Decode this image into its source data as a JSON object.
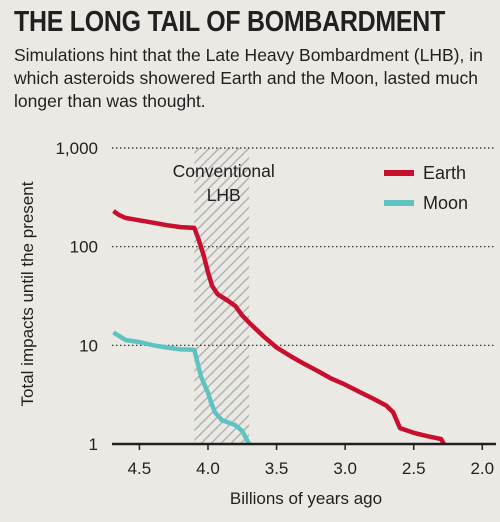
{
  "header": {
    "title": "THE LONG TAIL OF BOMBARDMENT",
    "subtitle": "Simulations hint that the Late Heavy Bombardment (LHB), in which asteroids showered Earth and the Moon, lasted much longer than was thought."
  },
  "chart_data": {
    "type": "line",
    "title": "THE LONG TAIL OF BOMBARDMENT",
    "xlabel": "Billions of years ago",
    "ylabel": "Total impacts until the present",
    "x_reversed": true,
    "xlim": [
      4.7,
      1.9
    ],
    "ylim": [
      1,
      1000
    ],
    "y_scale": "log",
    "x_ticks": [
      4.5,
      4.0,
      3.5,
      3.0,
      2.5,
      2.0
    ],
    "x_tick_labels": [
      "4.5",
      "4.0",
      "3.5",
      "3.0",
      "2.5",
      "2.0"
    ],
    "y_ticks": [
      1,
      10,
      100,
      1000
    ],
    "y_tick_labels": [
      "1",
      "10",
      "100",
      "1,000"
    ],
    "grid": "horizontal dotted",
    "legend_position": "top-right",
    "band": {
      "label": "Conventional LHB",
      "label_lines": [
        "Conventional",
        "LHB"
      ],
      "x_start": 4.1,
      "x_end": 3.7
    },
    "series": [
      {
        "name": "Earth",
        "color": "#c8102e",
        "points": [
          [
            4.69,
            230
          ],
          [
            4.65,
            210
          ],
          [
            4.6,
            195
          ],
          [
            4.5,
            185
          ],
          [
            4.4,
            175
          ],
          [
            4.3,
            165
          ],
          [
            4.2,
            158
          ],
          [
            4.1,
            155
          ],
          [
            4.07,
            120
          ],
          [
            4.03,
            80
          ],
          [
            4.0,
            55
          ],
          [
            3.97,
            40
          ],
          [
            3.93,
            33
          ],
          [
            3.85,
            28
          ],
          [
            3.8,
            25
          ],
          [
            3.75,
            20
          ],
          [
            3.7,
            17
          ],
          [
            3.6,
            12.5
          ],
          [
            3.5,
            9.5
          ],
          [
            3.4,
            7.8
          ],
          [
            3.3,
            6.5
          ],
          [
            3.2,
            5.5
          ],
          [
            3.1,
            4.6
          ],
          [
            3.0,
            4.0
          ],
          [
            2.9,
            3.4
          ],
          [
            2.8,
            2.9
          ],
          [
            2.7,
            2.45
          ],
          [
            2.65,
            2.1
          ],
          [
            2.6,
            1.45
          ],
          [
            2.5,
            1.3
          ],
          [
            2.4,
            1.2
          ],
          [
            2.3,
            1.12
          ],
          [
            2.28,
            1.0
          ]
        ]
      },
      {
        "name": "Moon",
        "color": "#5fc4c1",
        "points": [
          [
            4.69,
            13.5
          ],
          [
            4.65,
            12.5
          ],
          [
            4.6,
            11.3
          ],
          [
            4.5,
            10.8
          ],
          [
            4.4,
            10.0
          ],
          [
            4.3,
            9.5
          ],
          [
            4.2,
            9.1
          ],
          [
            4.1,
            9.0
          ],
          [
            4.08,
            7.0
          ],
          [
            4.05,
            4.8
          ],
          [
            4.0,
            3.3
          ],
          [
            3.98,
            2.7
          ],
          [
            3.95,
            2.1
          ],
          [
            3.9,
            1.75
          ],
          [
            3.8,
            1.55
          ],
          [
            3.75,
            1.35
          ],
          [
            3.7,
            1.0
          ]
        ]
      }
    ]
  }
}
